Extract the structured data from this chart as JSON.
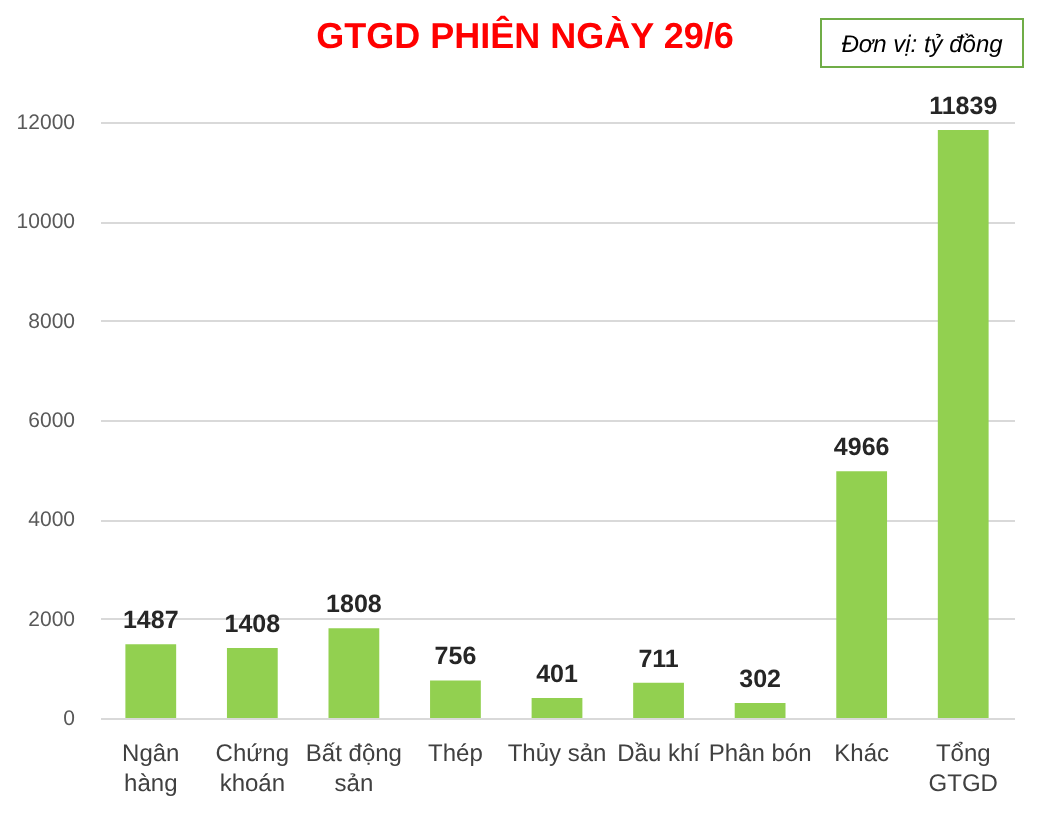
{
  "chart_data": {
    "type": "bar",
    "title": "GTGD PHIÊN NGÀY 29/6",
    "categories": [
      "Ngân hàng",
      "Chứng khoán",
      "Bất động sản",
      "Thép",
      "Thủy sản",
      "Dầu khí",
      "Phân bón",
      "Khác",
      "Tổng GTGD"
    ],
    "values": [
      1487,
      1408,
      1808,
      756,
      401,
      711,
      302,
      4966,
      11839
    ],
    "color": "#92d050",
    "ylim": [
      0,
      12000
    ],
    "yticks": [
      0,
      2000,
      4000,
      6000,
      8000,
      10000,
      12000
    ],
    "grid": "y",
    "data_labels": true,
    "annotations": [
      "Đơn vị: tỷ đồng"
    ]
  }
}
